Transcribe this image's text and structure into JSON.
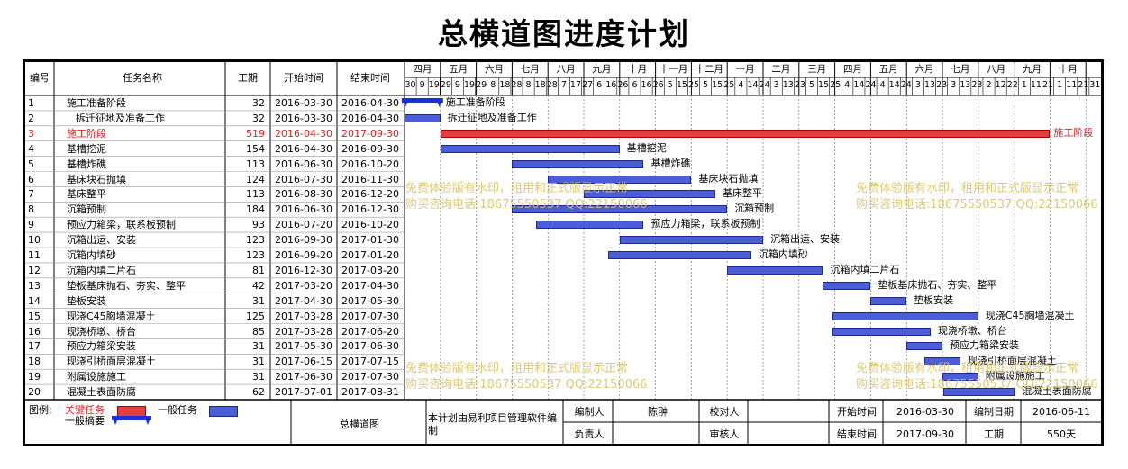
{
  "title": "总横道图进度计划",
  "headers": {
    "id": "编号",
    "name": "任务名称",
    "duration": "工期",
    "start": "开始时间",
    "end": "结束时间"
  },
  "months": [
    "四月",
    "五月",
    "六月",
    "七月",
    "八月",
    "九月",
    "十月",
    "十一月",
    "十二月",
    "一月",
    "二月",
    "三月",
    "四月",
    "五月",
    "六月",
    "七月",
    "八月",
    "九月",
    "十月"
  ],
  "days": [
    "30",
    "9",
    "19",
    "29",
    "9",
    "19",
    "29",
    "8",
    "18",
    "28",
    "8",
    "18",
    "28",
    "7",
    "17",
    "27",
    "6",
    "16",
    "26",
    "6",
    "16",
    "26",
    "5",
    "15",
    "25",
    "5",
    "15",
    "25",
    "4",
    "14",
    "24",
    "3",
    "13",
    "23",
    "5",
    "15",
    "25",
    "4",
    "14",
    "24",
    "4",
    "14",
    "24",
    "3",
    "13",
    "23",
    "3",
    "13",
    "23",
    "2",
    "12",
    "22",
    "1",
    "11",
    "21",
    "1",
    "11",
    "21",
    "31"
  ],
  "tasks": [
    {
      "id": "1",
      "name": "施工准备阶段",
      "duration": "32",
      "start": "2016-03-30",
      "end": "2016-04-30",
      "critical": false,
      "summary": true,
      "indent": false,
      "s": 0,
      "e": 1
    },
    {
      "id": "2",
      "name": "拆迁征地及准备工作",
      "duration": "32",
      "start": "2016-03-30",
      "end": "2016-04-30",
      "critical": false,
      "summary": false,
      "indent": true,
      "s": 0,
      "e": 1
    },
    {
      "id": "3",
      "name": "施工阶段",
      "duration": "519",
      "start": "2016-04-30",
      "end": "2017-09-30",
      "critical": true,
      "summary": false,
      "indent": false,
      "s": 1,
      "e": 18
    },
    {
      "id": "4",
      "name": "基槽挖泥",
      "duration": "154",
      "start": "2016-04-30",
      "end": "2016-09-30",
      "critical": false,
      "summary": false,
      "indent": false,
      "s": 1,
      "e": 6
    },
    {
      "id": "5",
      "name": "基槽炸礁",
      "duration": "113",
      "start": "2016-06-30",
      "end": "2016-10-20",
      "critical": false,
      "summary": false,
      "indent": false,
      "s": 3,
      "e": 6.67
    },
    {
      "id": "6",
      "name": "基床块石抛填",
      "duration": "124",
      "start": "2016-07-30",
      "end": "2016-11-30",
      "critical": false,
      "summary": false,
      "indent": false,
      "s": 4,
      "e": 8
    },
    {
      "id": "7",
      "name": "基床整平",
      "duration": "113",
      "start": "2016-08-30",
      "end": "2016-12-20",
      "critical": false,
      "summary": false,
      "indent": false,
      "s": 5,
      "e": 8.67
    },
    {
      "id": "8",
      "name": "沉箱预制",
      "duration": "184",
      "start": "2016-06-30",
      "end": "2016-12-30",
      "critical": false,
      "summary": false,
      "indent": false,
      "s": 3,
      "e": 9
    },
    {
      "id": "9",
      "name": "预应力箱梁，联系板预制",
      "duration": "93",
      "start": "2016-07-20",
      "end": "2016-10-20",
      "critical": false,
      "summary": false,
      "indent": false,
      "s": 3.67,
      "e": 6.67
    },
    {
      "id": "10",
      "name": "沉箱出运、安装",
      "duration": "123",
      "start": "2016-09-30",
      "end": "2017-01-30",
      "critical": false,
      "summary": false,
      "indent": false,
      "s": 6,
      "e": 10
    },
    {
      "id": "11",
      "name": "沉箱内填砂",
      "duration": "123",
      "start": "2016-09-20",
      "end": "2017-01-20",
      "critical": false,
      "summary": false,
      "indent": false,
      "s": 5.67,
      "e": 9.67
    },
    {
      "id": "12",
      "name": "沉箱内填二片石",
      "duration": "81",
      "start": "2016-12-30",
      "end": "2017-03-20",
      "critical": false,
      "summary": false,
      "indent": false,
      "s": 9,
      "e": 11.67
    },
    {
      "id": "13",
      "name": "垫板基床抛石、夯实、整平",
      "duration": "42",
      "start": "2017-03-20",
      "end": "2017-04-30",
      "critical": false,
      "summary": false,
      "indent": false,
      "s": 11.67,
      "e": 13
    },
    {
      "id": "14",
      "name": "垫板安装",
      "duration": "31",
      "start": "2017-04-30",
      "end": "2017-05-30",
      "critical": false,
      "summary": false,
      "indent": false,
      "s": 13,
      "e": 14
    },
    {
      "id": "15",
      "name": "现浇C45胸墙混凝土",
      "duration": "125",
      "start": "2017-03-28",
      "end": "2017-07-30",
      "critical": false,
      "summary": false,
      "indent": false,
      "s": 11.93,
      "e": 16
    },
    {
      "id": "16",
      "name": "现浇桥墩、桥台",
      "duration": "85",
      "start": "2017-03-28",
      "end": "2017-06-20",
      "critical": false,
      "summary": false,
      "indent": false,
      "s": 11.93,
      "e": 14.67
    },
    {
      "id": "17",
      "name": "预应力箱梁安装",
      "duration": "31",
      "start": "2017-05-30",
      "end": "2017-06-30",
      "critical": false,
      "summary": false,
      "indent": false,
      "s": 14,
      "e": 15
    },
    {
      "id": "18",
      "name": "现浇引桥面层混凝土",
      "duration": "31",
      "start": "2017-06-15",
      "end": "2017-07-15",
      "critical": false,
      "summary": false,
      "indent": false,
      "s": 14.5,
      "e": 15.5
    },
    {
      "id": "19",
      "name": "附属设施施工",
      "duration": "31",
      "start": "2017-06-30",
      "end": "2017-07-30",
      "critical": false,
      "summary": false,
      "indent": false,
      "s": 15,
      "e": 16
    },
    {
      "id": "20",
      "name": "混凝土表面防腐",
      "duration": "62",
      "start": "2017-07-01",
      "end": "2017-08-31",
      "critical": false,
      "summary": false,
      "indent": false,
      "s": 15.03,
      "e": 17.03
    }
  ],
  "watermark": {
    "line1": "免费体验版有水印，租用和正式版显示正常",
    "line2": "购买咨询电话:18675550537 QQ:22150066"
  },
  "footer": {
    "legend_label": "图例:",
    "critical_label": "关键任务",
    "normal_label": "一般任务",
    "summary_label": "一般摘要",
    "chart_name": "总横道图",
    "software_note": "本计划由易利项目管理软件编制",
    "author_label": "编制人",
    "author": "陈翀",
    "checker_label": "校对人",
    "checker": "",
    "owner_label": "负责人",
    "owner": "",
    "reviewer_label": "审核人",
    "reviewer": "",
    "start_label": "开始时间",
    "start": "2016-03-30",
    "end_label": "结束时间",
    "end": "2017-09-30",
    "made_label": "编制日期",
    "made": "2016-06-11",
    "duration_label": "工期",
    "duration": "550天"
  },
  "colors": {
    "critical": "#e04040",
    "normal": "#4c5dd8",
    "summary": "#1a2fd8",
    "watermark": "#d8c060"
  }
}
